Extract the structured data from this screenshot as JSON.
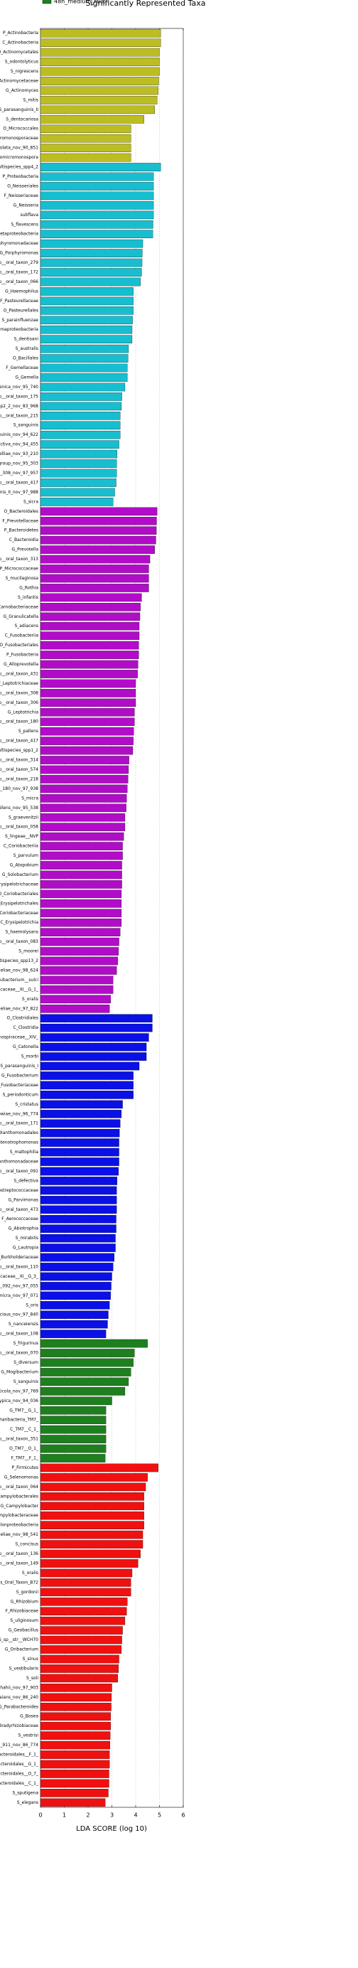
{
  "chart_data": {
    "type": "barh",
    "title": "Significantly Represented Taxa",
    "x_label": "LDA SCORE (log 10)",
    "xlim": [
      0,
      6
    ],
    "xticks": [
      0,
      1,
      2,
      3,
      4,
      5,
      6
    ],
    "grid": true,
    "series": [
      {
        "color": "#bcbd22",
        "categories": [
          "P_Actinobacteria",
          "C_Actinobacteria",
          "O_Actinomycetales",
          "S_odontolyticus",
          "S_nigrescens",
          "F_Actinomycetaceae",
          "G_Actinomyces",
          "S_mitis",
          "S_parasanguinis_II",
          "S_dentocariosa",
          "O_Micrococcales",
          "F_Promicromonosporaceae",
          "S_aerolata_nov_90_851",
          "G_Promicromonospora"
        ],
        "values": [
          5.05,
          5.05,
          5.0,
          5.0,
          5.0,
          4.97,
          4.95,
          4.9,
          4.8,
          4.35,
          3.8,
          3.8,
          3.8,
          3.8
        ]
      },
      {
        "color": "#17becf",
        "categories": [
          "S_multispecies_spp4_2",
          "P_Proteobacteria",
          "O_Neisseriales",
          "F_Neisseriaceae",
          "G_Neisseria",
          "subflava",
          "S_flavescens",
          "C_Betaproteobacteria",
          "F_Porphyromonadaceae",
          "G_Porphyromonas",
          "S_sp__oral_taxon_279",
          "S_sp__oral_taxon_172",
          "S_sp__oral_taxon_066",
          "G_Haemophilus",
          "F_Pasteurellaceae",
          "O_Pasteurellales",
          "S_parainfluenzae",
          "C_Gammaproteobacteria",
          "S_dentisani",
          "S_australis",
          "O_Bacillales",
          "F_Gemellaceae",
          "G_Gemella",
          "monongenica_nov_95_740",
          "S_sp__oral_taxon_175",
          "cies_spp2_2_nov_83_968",
          "S_sp__oral_taxon_215",
          "S_sanguinis",
          "S_sanguinis_nov_94_622",
          "S_defectiva_nov_94_455",
          "S_danielliae_nov_93_210",
          "parvula_group_nov_95_303",
          "al_taxon_308_nov_97_957",
          "S_sp__oral_taxon_417",
          "sanguinis_II_nov_97_988",
          "S_sicra"
        ],
        "values": [
          5.05,
          4.75,
          4.75,
          4.75,
          4.75,
          4.75,
          4.73,
          4.72,
          4.3,
          4.28,
          4.27,
          4.25,
          4.2,
          3.9,
          3.9,
          3.9,
          3.87,
          3.85,
          3.85,
          3.7,
          3.68,
          3.65,
          3.65,
          3.55,
          3.42,
          3.4,
          3.35,
          3.35,
          3.35,
          3.3,
          3.22,
          3.2,
          3.2,
          3.18,
          3.12,
          3.05
        ]
      },
      {
        "color": "#b10cc8",
        "categories": [
          "O_Bacteroidales",
          "F_Prevotellaceae",
          "P_Bacteroidetes",
          "C_Bacteroidia",
          "G_Prevotella",
          "S_sp__oral_taxon_313",
          "P_Micrococcaceae",
          "S_mucilaginosa",
          "G_Rothia",
          "S_infantis",
          "F_Carnobacteriaceae",
          "G_Granulicatella",
          "S_adiacens",
          "C_Fusobacteriia",
          "O_Fusobacteriales",
          "P_Fusobacteria",
          "G_Alloprevotella",
          "S_sp__oral_taxon_431",
          "F_Leptotrichiaceae",
          "S_sp__oral_taxon_308",
          "S_sp__oral_taxon_306",
          "G_Leptotrichia",
          "S_sp__oral_taxon_180",
          "S_pallens",
          "S_sp__oral_taxon_417",
          "S_multispecies_spp1_2",
          "S_sp__oral_taxon_314",
          "S_sp__oral_taxon_574",
          "S_sp__oral_taxon_218",
          "al_taxon_180_nov_97_938",
          "S_micra",
          "S_pallens_nov_95_538",
          "S_graevenitzii",
          "S_sp__oral_taxon_058",
          "S_lingeae__NVP",
          "C_Coriobacteriia",
          "S_parvulum",
          "G_Atopobium",
          "G_Solobacterium",
          "F_Erysipelotrichaceae",
          "O_Coriobacteriales",
          "O_Erysipelotrichales",
          "F_Coriobacteriaceae",
          "C_Erysipelotrichia",
          "S_haemolysans",
          "S_sp__oral_taxon_083",
          "S_moorei",
          "S_multispecies_spp13_2",
          "S_danieliae_nov_98_624",
          "S__Eubacterium__sulci",
          "reptococcaceae__XI__G_1_",
          "S_oralis",
          "S_danieliae_nov_97_822"
        ],
        "values": [
          4.9,
          4.88,
          4.87,
          4.85,
          4.8,
          4.6,
          4.55,
          4.55,
          4.55,
          4.25,
          4.2,
          4.18,
          4.15,
          4.15,
          4.13,
          4.13,
          4.1,
          4.08,
          4.0,
          4.0,
          4.0,
          3.95,
          3.95,
          3.92,
          3.9,
          3.88,
          3.72,
          3.7,
          3.68,
          3.65,
          3.62,
          3.6,
          3.55,
          3.55,
          3.5,
          3.45,
          3.45,
          3.42,
          3.42,
          3.42,
          3.4,
          3.4,
          3.4,
          3.4,
          3.35,
          3.3,
          3.28,
          3.25,
          3.2,
          3.05,
          3.05,
          2.95,
          2.9
        ]
      },
      {
        "color": "#0a10e6",
        "categories": [
          "O_Clostridiales",
          "C_Clostridia",
          "F_Lachnospiraceae__XIV_",
          "G_Catonella",
          "S_morbi",
          "S_parasanguinis_I",
          "G_Fusobacterium",
          "F_Fusobacteriaceae",
          "S_periodonticum",
          "S_cristatus",
          "S_showiae_nov_96_774",
          "S_sp__oral_taxon_171",
          "O_Xanthomonadales",
          "G_Stenotrophomonas",
          "S_maltophilia",
          "F_Xanthomonadaceae",
          "S_sp__oral_taxon_091",
          "S_defectiva",
          "F_Peptostreptococcaceae",
          "G_Parvimonas",
          "S_sp__oral_taxon_473",
          "F_Aerococcaceae",
          "G_Abiotrophia",
          "S_mirabilis",
          "G_Lautropia",
          "F_Burkholderiaceae",
          "S_sp__oral_taxon_110",
          "reptococcaceae__XI__G_3_",
          "al_taxon_092_nov_97_055",
          "S_micra_nov_97_071",
          "S_oris",
          "S_concisus_nov_97_840",
          "S_nanceiensis",
          "S_sp__oral_taxon_108"
        ],
        "values": [
          4.7,
          4.7,
          4.55,
          4.45,
          4.45,
          4.15,
          3.9,
          3.9,
          3.9,
          3.45,
          3.4,
          3.35,
          3.32,
          3.3,
          3.3,
          3.3,
          3.28,
          3.22,
          3.2,
          3.2,
          3.2,
          3.18,
          3.18,
          3.15,
          3.15,
          3.1,
          3.05,
          3.0,
          2.97,
          2.95,
          2.9,
          2.85,
          2.82,
          2.75
        ]
      },
      {
        "name": "48h_medium_Milk",
        "color": "#1e7f1e",
        "categories": [
          "S_frigurinus",
          "S_sp__oral_taxon_070",
          "S_diversum",
          "G_Mogibacterium",
          "S_sanguinis",
          "S_histicola_nov_97_769",
          "S_atypica_nov_94_036",
          "G_TM7__G_1_",
          "P_Saccharibacteria_TM7_",
          "C_TM7__C_1_",
          "S_sp__oral_taxon_351",
          "O_TM7__O_1_",
          "F_TM7__F_1_"
        ],
        "values": [
          4.5,
          3.95,
          3.9,
          3.8,
          3.7,
          3.55,
          3.0,
          2.75,
          2.75,
          2.75,
          2.75,
          2.75,
          2.72
        ]
      },
      {
        "color": "#f01010",
        "categories": [
          "P_Firmicutes",
          "G_Selenomonas",
          "S_sp__oral_taxon_064",
          "O_Campylobacterales",
          "G_Campylobacter",
          "F_Campylobacteraceae",
          "C_Epsilonproteobacteria",
          "S_danieliae_nov_98_541",
          "S_concisus",
          "S_sp__oral_taxon_136",
          "S_sp__oral_taxon_149",
          "S_oralis",
          "hmoniosis_Oral_Taxon_B72",
          "S_gordonii",
          "G_Rhizobium",
          "F_Rhizobiaceae",
          "S_uliginosum",
          "G_Geobacillus",
          "S_sp__str__WCH70",
          "G_Oribacterium",
          "S_sinus",
          "S_vestibularis",
          "S_soli",
          "S_shahii_nov_97_903",
          "S_thdaaians_nov_86_240",
          "G_Parabacteroides",
          "G_Bosea",
          "F_Bradyrhizobiaceae",
          "S_vestrisi",
          "al_taxon_911_nov_86_774",
          "F_Bacteroidales__F_1_",
          "G_Bacteroidales__G_1_",
          "O_Bacteroidales__O_7_",
          "C_Bacteroidales__C_1_",
          "S_sputigena",
          "S_elegans"
        ],
        "values": [
          4.95,
          4.5,
          4.42,
          4.35,
          4.35,
          4.35,
          4.35,
          4.3,
          4.3,
          4.2,
          4.1,
          3.85,
          3.8,
          3.8,
          3.65,
          3.62,
          3.55,
          3.45,
          3.42,
          3.4,
          3.3,
          3.28,
          3.25,
          3.0,
          2.98,
          2.97,
          2.95,
          2.95,
          2.93,
          2.92,
          2.9,
          2.9,
          2.88,
          2.88,
          2.85,
          2.72
        ]
      }
    ]
  }
}
